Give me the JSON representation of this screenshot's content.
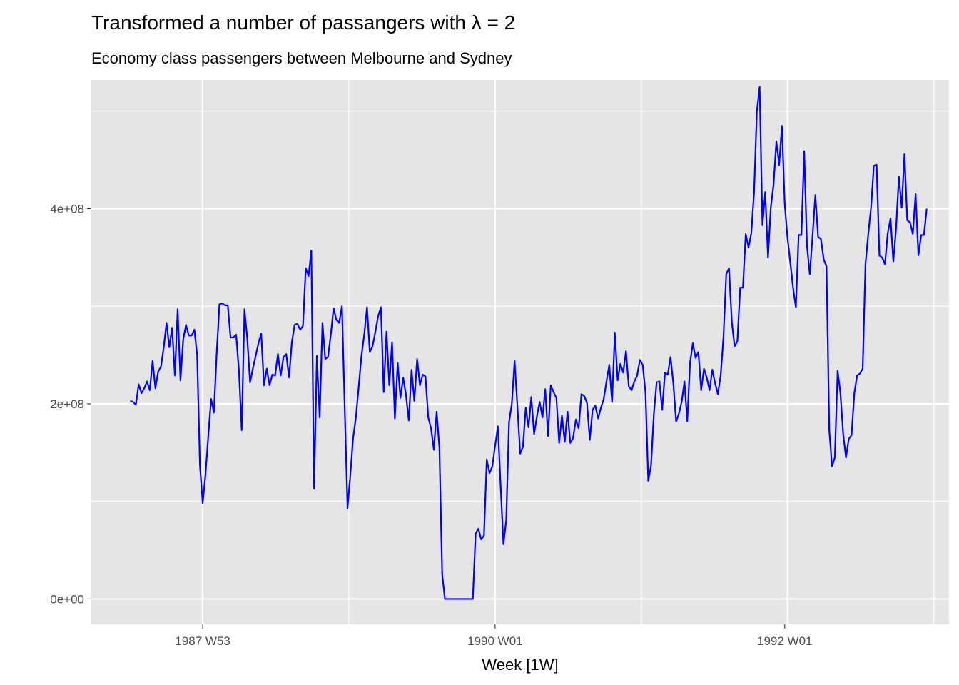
{
  "chart_data": {
    "type": "line",
    "title": "Transformed a number of passangers with λ = 2",
    "subtitle": "Economy class passengers between Melbourne and Sydney",
    "xlabel": "Week [1W]",
    "ylabel": "",
    "x_start": "1987 W27",
    "x_end": "1992 W46",
    "x_ticks": [
      "1987 W53",
      "1990 W01",
      "1992 W01"
    ],
    "y_ticks": [
      "0e+00",
      "2e+08",
      "4e+08"
    ],
    "ylim": [
      -26000000,
      532000000
    ],
    "grid": true,
    "legend": "none",
    "colors": {
      "line": "#0000ff",
      "panel": "#e5e5e5",
      "grid": "#ffffff"
    },
    "series": [
      {
        "values": [
          203000000,
          202000000,
          199000000,
          220000000,
          211000000,
          216000000,
          223000000,
          214000000,
          244000000,
          216000000,
          233000000,
          238000000,
          258000000,
          283000000,
          258000000,
          278000000,
          229000000,
          297000000,
          224000000,
          266000000,
          281000000,
          270000000,
          270000000,
          276000000,
          250000000,
          137000000,
          98000000,
          128000000,
          167000000,
          205000000,
          191000000,
          251000000,
          302000000,
          303000000,
          301000000,
          301000000,
          268000000,
          268000000,
          271000000,
          234000000,
          173000000,
          297000000,
          267000000,
          222000000,
          236000000,
          249000000,
          262000000,
          272000000,
          219000000,
          236000000,
          219000000,
          230000000,
          229000000,
          251000000,
          229000000,
          248000000,
          251000000,
          227000000,
          263000000,
          281000000,
          282000000,
          276000000,
          280000000,
          339000000,
          331000000,
          357000000,
          113000000,
          249000000,
          186000000,
          283000000,
          246000000,
          248000000,
          271000000,
          298000000,
          286000000,
          283000000,
          300000000,
          195000000,
          93000000,
          127000000,
          165000000,
          186000000,
          217000000,
          249000000,
          271000000,
          299000000,
          253000000,
          259000000,
          274000000,
          290000000,
          299000000,
          212000000,
          274000000,
          219000000,
          263000000,
          185000000,
          242000000,
          206000000,
          227000000,
          209000000,
          183000000,
          235000000,
          203000000,
          246000000,
          219000000,
          230000000,
          228000000,
          186000000,
          175000000,
          153000000,
          192000000,
          155000000,
          25000000,
          0,
          0,
          0,
          0,
          0,
          0,
          0,
          0,
          0,
          0,
          0,
          67000000,
          72000000,
          61000000,
          65000000,
          143000000,
          129000000,
          136000000,
          157000000,
          177000000,
          115000000,
          56000000,
          81000000,
          181000000,
          200000000,
          244000000,
          198000000,
          149000000,
          156000000,
          196000000,
          176000000,
          207000000,
          169000000,
          187000000,
          202000000,
          186000000,
          215000000,
          167000000,
          219000000,
          212000000,
          206000000,
          160000000,
          188000000,
          161000000,
          192000000,
          160000000,
          165000000,
          184000000,
          175000000,
          210000000,
          208000000,
          201000000,
          163000000,
          194000000,
          198000000,
          185000000,
          196000000,
          205000000,
          223000000,
          240000000,
          202000000,
          273000000,
          224000000,
          241000000,
          232000000,
          254000000,
          218000000,
          214000000,
          223000000,
          229000000,
          245000000,
          240000000,
          212000000,
          121000000,
          137000000,
          189000000,
          222000000,
          223000000,
          194000000,
          232000000,
          230000000,
          248000000,
          221000000,
          182000000,
          190000000,
          202000000,
          223000000,
          182000000,
          242000000,
          262000000,
          247000000,
          253000000,
          214000000,
          236000000,
          227000000,
          214000000,
          235000000,
          221000000,
          210000000,
          229000000,
          268000000,
          333000000,
          339000000,
          284000000,
          259000000,
          264000000,
          319000000,
          319000000,
          374000000,
          360000000,
          375000000,
          417000000,
          500000000,
          525000000,
          383000000,
          417000000,
          350000000,
          401000000,
          425000000,
          469000000,
          445000000,
          485000000,
          405000000,
          370000000,
          345000000,
          319000000,
          299000000,
          373000000,
          373000000,
          459000000,
          362000000,
          333000000,
          372000000,
          414000000,
          371000000,
          369000000,
          348000000,
          341000000,
          173000000,
          136000000,
          145000000,
          234000000,
          211000000,
          169000000,
          145000000,
          164000000,
          168000000,
          211000000,
          229000000,
          231000000,
          236000000,
          343000000,
          374000000,
          401000000,
          444000000,
          445000000,
          352000000,
          350000000,
          343000000,
          375000000,
          390000000,
          346000000,
          380000000,
          433000000,
          401000000,
          456000000,
          388000000,
          386000000,
          374000000,
          415000000,
          352000000,
          373000000,
          373000000,
          400000000
        ]
      }
    ]
  }
}
